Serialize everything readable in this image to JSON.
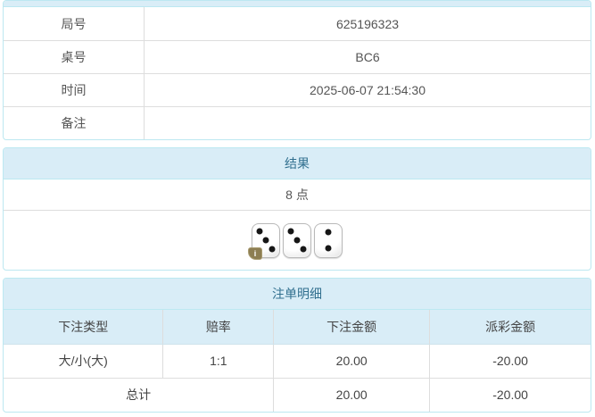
{
  "colors": {
    "panel_border": "#bce8f1",
    "heading_bg": "#d9edf7",
    "heading_text": "#31708f",
    "cell_border": "#dddddd",
    "body_text": "#555555",
    "negative_value": "#ff0000",
    "info_badge_bg": "#8d7e52"
  },
  "info_table": {
    "rows": [
      {
        "label": "局号",
        "value": "625196323"
      },
      {
        "label": "桌号",
        "value": "BC6"
      },
      {
        "label": "时间",
        "value": "2025-06-07 21:54:30"
      },
      {
        "label": "备注",
        "value": ""
      }
    ]
  },
  "result_panel": {
    "title": "结果",
    "total_points": "8 点",
    "dice": [
      3,
      3,
      2
    ],
    "info_badge": "i"
  },
  "bet_panel": {
    "title": "注单明细",
    "columns": [
      "下注类型",
      "赔率",
      "下注金额",
      "派彩金额"
    ],
    "rows": [
      {
        "bet_type": "大/小(大)",
        "odds": "1:1",
        "bet_amount": "20.00",
        "payout_amount": "-20.00"
      }
    ],
    "total_row": {
      "label": "总计",
      "bet_amount": "20.00",
      "payout_amount": "-20.00"
    }
  }
}
